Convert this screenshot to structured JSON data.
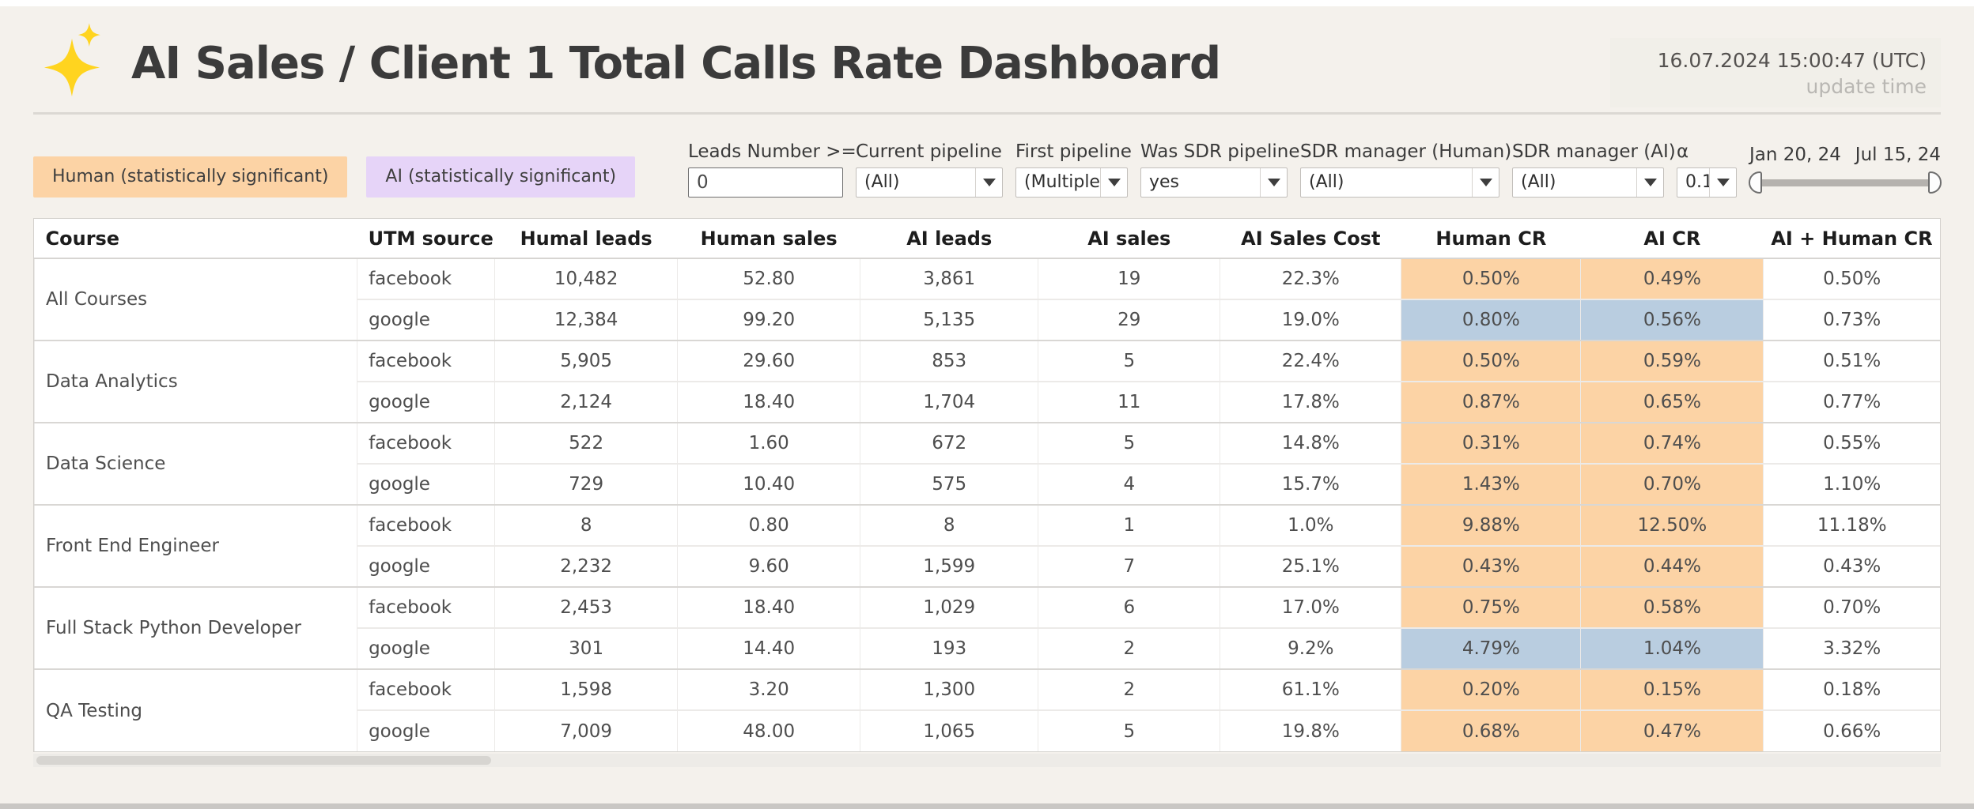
{
  "header": {
    "title": "AI Sales / Client 1 Total Calls Rate Dashboard",
    "timestamp": "16.07.2024 15:00:47 (UTC)",
    "timestamp_label": "update time"
  },
  "legend": {
    "human": "Human (statistically significant)",
    "ai": "AI (statistically significant)"
  },
  "filters": [
    {
      "key": "leads_number",
      "label": "Leads Number >=",
      "type": "input",
      "value": "0"
    },
    {
      "key": "current_pipeline",
      "label": "Current pipeline",
      "type": "select",
      "value": "(All)"
    },
    {
      "key": "first_pipeline",
      "label": "First pipeline",
      "type": "select",
      "value": "(Multiple ..."
    },
    {
      "key": "was_sdr_pipeline",
      "label": "Was SDR pipeline",
      "type": "select",
      "value": "yes"
    },
    {
      "key": "sdr_manager_human",
      "label": "SDR manager (Human)",
      "type": "select",
      "value": "(All)"
    },
    {
      "key": "sdr_manager_ai",
      "label": "SDR manager (AI)",
      "type": "select",
      "value": "(All)"
    },
    {
      "key": "alpha",
      "label": "α",
      "type": "select",
      "value": "0.1"
    }
  ],
  "date_slider": {
    "start": "Jan 20, 24",
    "end": "Jul 15, 24"
  },
  "table": {
    "columns": [
      "Course",
      "UTM source",
      "Humal leads",
      "Human sales",
      "AI leads",
      "AI sales",
      "AI Sales Cost",
      "Human CR",
      "AI CR",
      "AI + Human CR"
    ],
    "groups": [
      {
        "course": "All Courses",
        "rows": [
          {
            "cells": [
              "facebook",
              "10,482",
              "52.80",
              "3,861",
              "19",
              "22.3%",
              "0.50%",
              "0.49%",
              "0.50%"
            ],
            "highlight": "human"
          },
          {
            "cells": [
              "google",
              "12,384",
              "99.20",
              "5,135",
              "29",
              "19.0%",
              "0.80%",
              "0.56%",
              "0.73%"
            ],
            "highlight": "blue"
          }
        ]
      },
      {
        "course": "Data Analytics",
        "rows": [
          {
            "cells": [
              "facebook",
              "5,905",
              "29.60",
              "853",
              "5",
              "22.4%",
              "0.50%",
              "0.59%",
              "0.51%"
            ],
            "highlight": "human"
          },
          {
            "cells": [
              "google",
              "2,124",
              "18.40",
              "1,704",
              "11",
              "17.8%",
              "0.87%",
              "0.65%",
              "0.77%"
            ],
            "highlight": "human"
          }
        ]
      },
      {
        "course": "Data Science",
        "rows": [
          {
            "cells": [
              "facebook",
              "522",
              "1.60",
              "672",
              "5",
              "14.8%",
              "0.31%",
              "0.74%",
              "0.55%"
            ],
            "highlight": "human"
          },
          {
            "cells": [
              "google",
              "729",
              "10.40",
              "575",
              "4",
              "15.7%",
              "1.43%",
              "0.70%",
              "1.10%"
            ],
            "highlight": "human"
          }
        ]
      },
      {
        "course": "Front End Engineer",
        "rows": [
          {
            "cells": [
              "facebook",
              "8",
              "0.80",
              "8",
              "1",
              "1.0%",
              "9.88%",
              "12.50%",
              "11.18%"
            ],
            "highlight": "human"
          },
          {
            "cells": [
              "google",
              "2,232",
              "9.60",
              "1,599",
              "7",
              "25.1%",
              "0.43%",
              "0.44%",
              "0.43%"
            ],
            "highlight": "human"
          }
        ]
      },
      {
        "course": "Full Stack Python Developer",
        "rows": [
          {
            "cells": [
              "facebook",
              "2,453",
              "18.40",
              "1,029",
              "6",
              "17.0%",
              "0.75%",
              "0.58%",
              "0.70%"
            ],
            "highlight": "human"
          },
          {
            "cells": [
              "google",
              "301",
              "14.40",
              "193",
              "2",
              "9.2%",
              "4.79%",
              "1.04%",
              "3.32%"
            ],
            "highlight": "blue"
          }
        ]
      },
      {
        "course": "QA Testing",
        "rows": [
          {
            "cells": [
              "facebook",
              "1,598",
              "3.20",
              "1,300",
              "2",
              "61.1%",
              "0.20%",
              "0.15%",
              "0.18%"
            ],
            "highlight": "human"
          },
          {
            "cells": [
              "google",
              "7,009",
              "48.00",
              "1,065",
              "5",
              "19.8%",
              "0.68%",
              "0.47%",
              "0.66%"
            ],
            "highlight": "human"
          }
        ]
      }
    ]
  },
  "colors": {
    "human_highlight": "#fcd3a5",
    "ai_highlight": "#e6d4f8",
    "blue_highlight": "#b9cde0",
    "logo_gold": "#ffd41f"
  }
}
